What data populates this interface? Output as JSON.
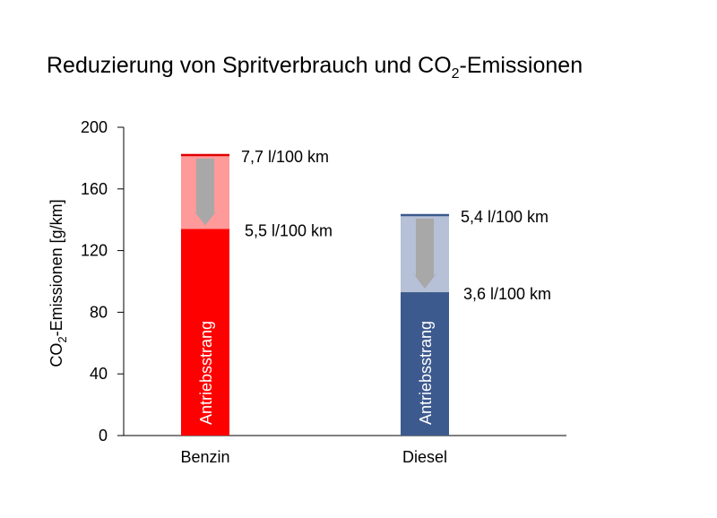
{
  "chart_data": {
    "type": "bar",
    "title": {
      "prefix": "Reduzierung von Spritverbrauch und CO",
      "subscript": "2",
      "suffix": "-Emissionen"
    },
    "ylabel": {
      "prefix": "CO",
      "subscript": "2",
      "suffix": "-Emissionen [g/km]"
    },
    "xlabel": "",
    "ylim": [
      0,
      200
    ],
    "yticks": [
      "0",
      "40",
      "80",
      "120",
      "160",
      "200"
    ],
    "grid": false,
    "categories": [
      "Benzin",
      "Diesel"
    ],
    "series": [
      {
        "name": "Antriebsstrang",
        "values": [
          134,
          93
        ],
        "labels": [
          "5,5 l/100 km",
          "3,6 l/100 km"
        ]
      },
      {
        "values": [
          182,
          143
        ],
        "labels": [
          "7,7  l/100 km",
          "5,4  l/100 km"
        ]
      }
    ],
    "colors": {
      "benzin_base": "#ff0000",
      "benzin_top": "#ff9a9a",
      "benzin_line": "#e00000",
      "diesel_base": "#3d5a8e",
      "diesel_top": "#b6c0d6",
      "diesel_line": "#3d5a8e",
      "arrow": "#a8a8a8",
      "axis": "#000000"
    },
    "icons": [
      "down-arrow-icon",
      "down-arrow-icon"
    ]
  }
}
